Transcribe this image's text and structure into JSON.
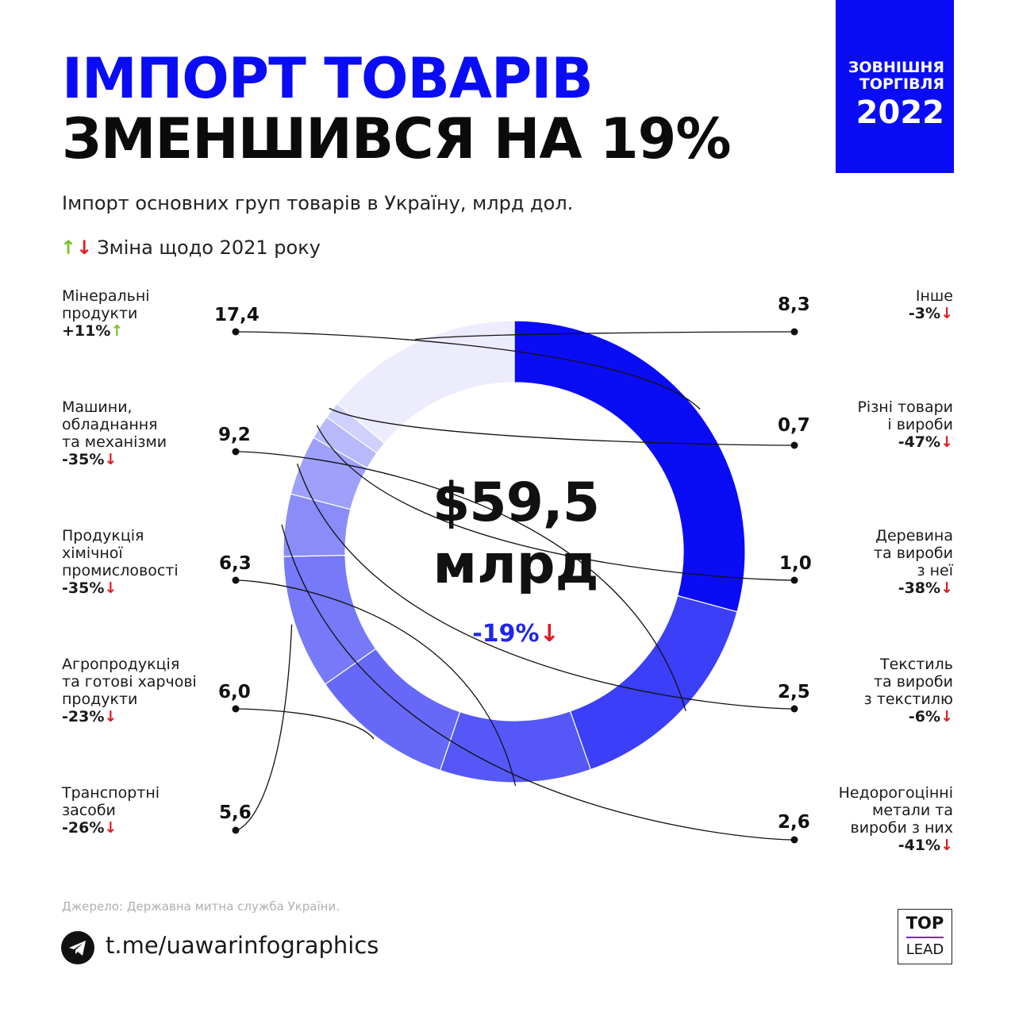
{
  "header": {
    "title_line1": "ІМПОРТ ТОВАРІВ",
    "title_line2": "ЗМЕНШИВСЯ НА 19%",
    "badge_line1": "ЗОВНІШНЯ",
    "badge_line2": "ТОРГІВЛЯ",
    "badge_year": "2022",
    "subtitle": "Імпорт основних груп товарів в Україну, млрд дол.",
    "legend_text": "Зміна щодо 2021 року"
  },
  "center": {
    "amount": "$59,5",
    "unit": "млрд",
    "change": "-19%"
  },
  "chart_data": {
    "type": "pie",
    "donut": true,
    "total": 59.5,
    "total_change": "-19%",
    "slices": [
      {
        "label_lines": [
          "Мінеральні",
          "продукти"
        ],
        "value": 17.4,
        "value_label": "17,4",
        "change": "+11%",
        "direction": "up",
        "color": "#0a0cf5"
      },
      {
        "label_lines": [
          "Машини,",
          "обладнання",
          "та механізми"
        ],
        "value": 9.2,
        "value_label": "9,2",
        "change": "-35%",
        "direction": "down",
        "color": "#3b3ff7"
      },
      {
        "label_lines": [
          "Продукція",
          "хімічної",
          "промисловості"
        ],
        "value": 6.3,
        "value_label": "6,3",
        "change": "-35%",
        "direction": "down",
        "color": "#5558f7"
      },
      {
        "label_lines": [
          "Агропродукція",
          "та готові харчові",
          "продукти"
        ],
        "value": 6.0,
        "value_label": "6,0",
        "change": "-23%",
        "direction": "down",
        "color": "#6669f8"
      },
      {
        "label_lines": [
          "Транспортні",
          "засоби"
        ],
        "value": 5.6,
        "value_label": "5,6",
        "change": "-26%",
        "direction": "down",
        "color": "#7679f8"
      },
      {
        "label_lines": [
          "Недорогоцінні",
          "метали та",
          "вироби з них"
        ],
        "value": 2.6,
        "value_label": "2,6",
        "change": "-41%",
        "direction": "down",
        "color": "#8a8cf9"
      },
      {
        "label_lines": [
          "Текстиль",
          "та вироби",
          "з текстилю"
        ],
        "value": 2.5,
        "value_label": "2,5",
        "change": "-6%",
        "direction": "down",
        "color": "#9ea0fa"
      },
      {
        "label_lines": [
          "Деревина",
          "та вироби",
          "з неї"
        ],
        "value": 1.0,
        "value_label": "1,0",
        "change": "-38%",
        "direction": "down",
        "color": "#b8b9fb"
      },
      {
        "label_lines": [
          "Різні товари",
          "і вироби"
        ],
        "value": 0.7,
        "value_label": "0,7",
        "change": "-47%",
        "direction": "down",
        "color": "#cfd0fc"
      },
      {
        "label_lines": [
          "Інше"
        ],
        "value": 8.3,
        "value_label": "8,3",
        "change": "-3%",
        "direction": "down",
        "color": "#ececfd"
      }
    ]
  },
  "footer": {
    "source": "Джерело: Державна митна служба України.",
    "link": "t.me/uawarinfographics",
    "brand_top": "TOP",
    "brand_bottom": "LEAD",
    "icons": {
      "messenger": "telegram-icon"
    }
  },
  "colors": {
    "accent": "#0a0cf5",
    "up": "#7cc22e",
    "down": "#e01b24",
    "center_change": "#2125e8"
  }
}
